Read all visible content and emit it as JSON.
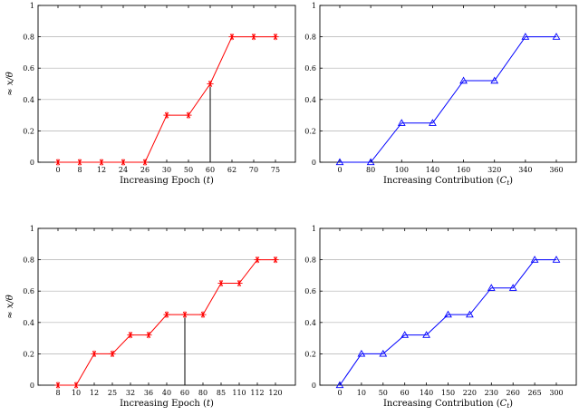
{
  "chart_data": [
    {
      "type": "line",
      "xlabel": "Increasing Epoch (t)",
      "ylabel": "≈ x/θ",
      "ylim": [
        0,
        1
      ],
      "yticks": [
        "0",
        "0.2",
        "0.4",
        "0.6",
        "0.8",
        "1"
      ],
      "categories": [
        "0",
        "8",
        "12",
        "24",
        "26",
        "30",
        "50",
        "60",
        "62",
        "70",
        "75"
      ],
      "series": [
        {
          "values": [
            0,
            0,
            0,
            0,
            0,
            0.3,
            0.3,
            0.5,
            0.8,
            0.8,
            0.8
          ],
          "color": "#ff0000",
          "marker": "asterisk"
        }
      ],
      "drop_line_at": "60",
      "grid": "horizontal"
    },
    {
      "type": "line",
      "xlabel": "Increasing Contribution (Ct)",
      "ylim": [
        0,
        1
      ],
      "yticks": [
        "0",
        "0.2",
        "0.4",
        "0.6",
        "0.8",
        "1"
      ],
      "categories": [
        "0",
        "80",
        "100",
        "140",
        "160",
        "320",
        "340",
        "360"
      ],
      "series": [
        {
          "values": [
            0,
            0,
            0.25,
            0.25,
            0.52,
            0.52,
            0.8,
            0.8
          ],
          "color": "#0000ff",
          "marker": "triangle"
        }
      ],
      "grid": "horizontal"
    },
    {
      "type": "line",
      "xlabel": "Increasing Epoch (t)",
      "ylabel": "≈ x/θ",
      "ylim": [
        0,
        1
      ],
      "yticks": [
        "0",
        "0.2",
        "0.4",
        "0.6",
        "0.8",
        "1"
      ],
      "categories": [
        "8",
        "10",
        "12",
        "25",
        "32",
        "36",
        "40",
        "60",
        "80",
        "85",
        "110",
        "112",
        "120"
      ],
      "series": [
        {
          "values": [
            0,
            0,
            0.2,
            0.2,
            0.32,
            0.32,
            0.45,
            0.45,
            0.45,
            0.65,
            0.65,
            0.8,
            0.8
          ],
          "color": "#ff0000",
          "marker": "asterisk"
        }
      ],
      "drop_line_at": "60",
      "grid": "horizontal"
    },
    {
      "type": "line",
      "xlabel": "Increasing Contribution (Ct)",
      "ylim": [
        0,
        1
      ],
      "yticks": [
        "0",
        "0.2",
        "0.4",
        "0.6",
        "0.8",
        "1"
      ],
      "categories": [
        "0",
        "10",
        "50",
        "60",
        "140",
        "150",
        "220",
        "230",
        "260",
        "265",
        "300"
      ],
      "series": [
        {
          "values": [
            0,
            0.2,
            0.2,
            0.32,
            0.32,
            0.45,
            0.45,
            0.62,
            0.62,
            0.8,
            0.8
          ],
          "color": "#0000ff",
          "marker": "triangle"
        }
      ],
      "grid": "horizontal"
    }
  ]
}
